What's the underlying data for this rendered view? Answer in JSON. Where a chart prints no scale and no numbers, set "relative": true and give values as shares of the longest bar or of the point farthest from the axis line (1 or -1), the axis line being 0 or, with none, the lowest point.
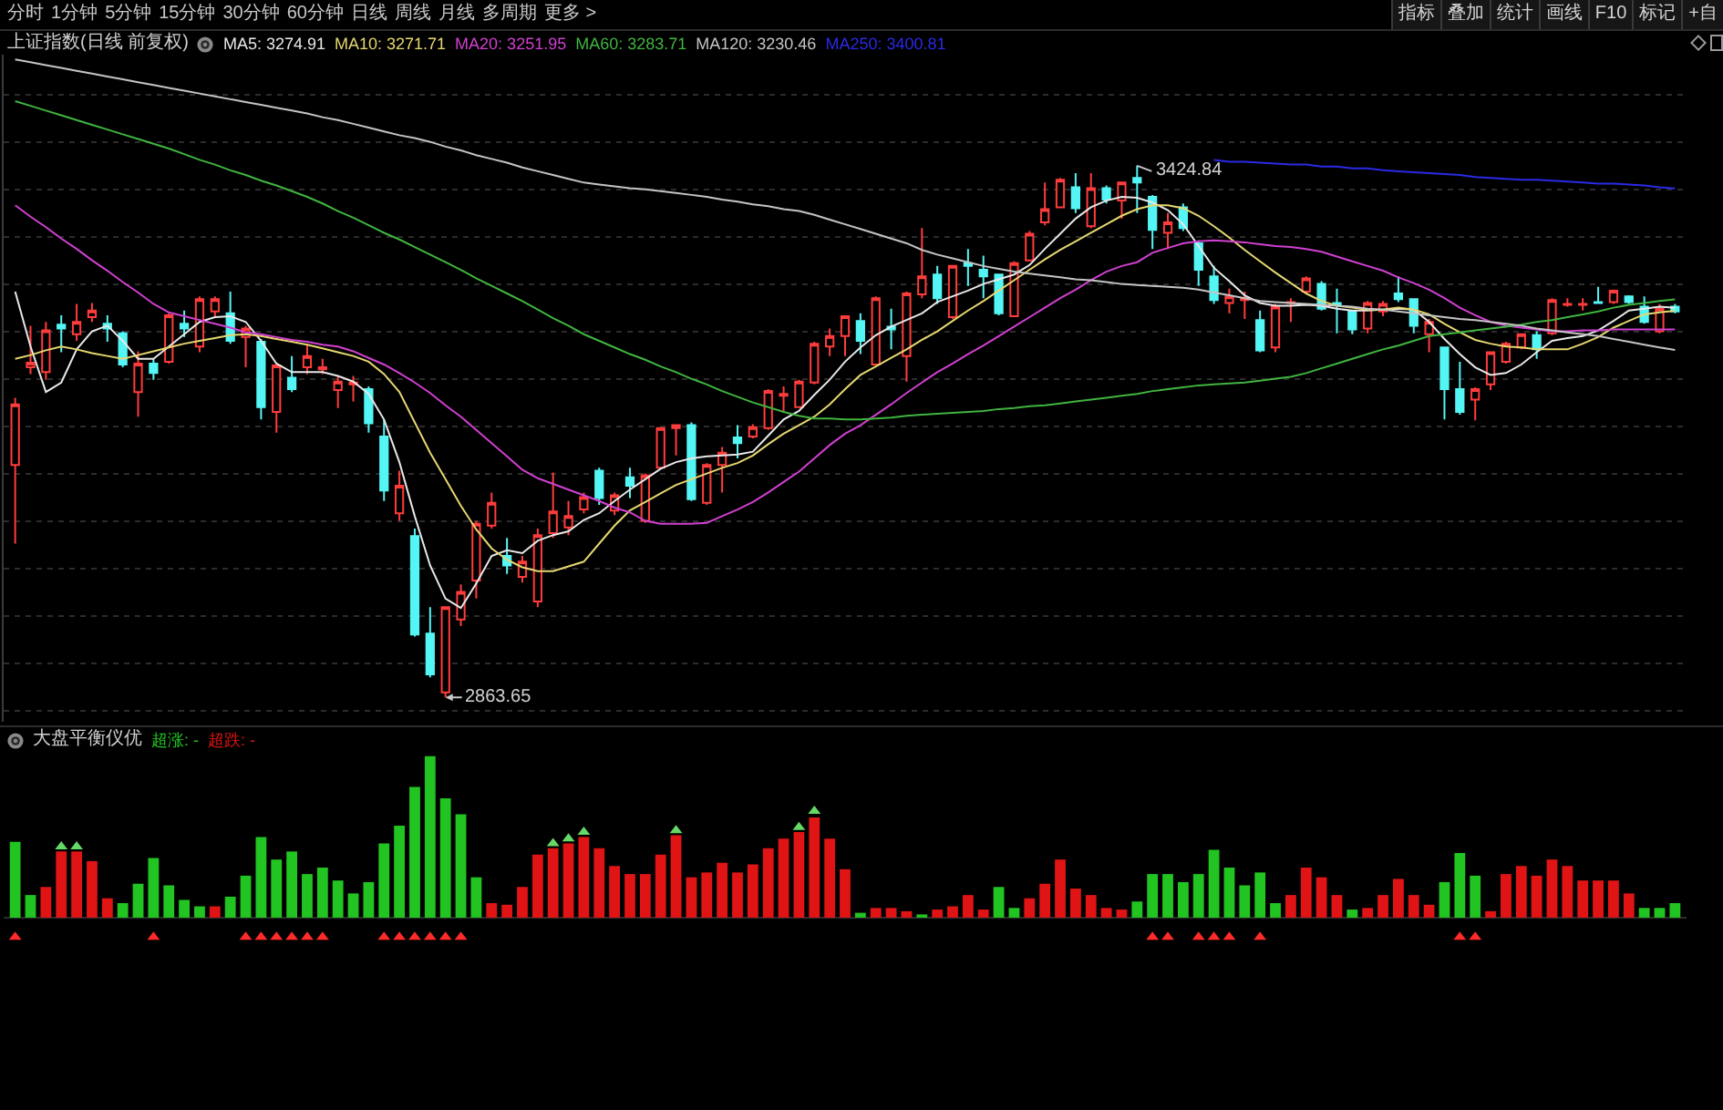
{
  "chart_data": [
    {
      "type": "other",
      "annotations": [
        "分时",
        "1分钟",
        "5分钟",
        "15分钟",
        "30分钟",
        "60分钟",
        "日线",
        "周线",
        "月线",
        "多周期",
        "更多 >"
      ]
    },
    {
      "type": "other",
      "annotations": [
        "指标",
        "叠加",
        "统计",
        "画线",
        "F10",
        "标记",
        "+自"
      ]
    },
    {
      "type": "candlestick",
      "title": "上证指数(日线 前复权)",
      "categories": [
        null,
        null,
        null,
        null,
        null,
        null,
        null,
        null,
        null,
        null,
        null,
        null,
        null,
        null,
        null,
        null,
        null,
        null,
        null,
        null,
        null,
        null,
        null,
        null,
        null,
        null,
        null,
        null,
        null,
        null,
        null,
        null,
        null,
        null,
        null,
        null,
        null,
        null,
        null,
        null,
        null,
        null,
        null,
        null,
        null,
        null,
        null,
        null,
        null,
        null,
        null,
        null,
        null,
        null,
        null,
        null,
        null,
        null,
        null,
        null,
        null,
        null,
        null,
        null,
        null,
        null,
        null,
        null,
        null,
        null,
        null,
        null,
        null,
        null,
        null,
        null,
        null,
        null,
        null,
        null,
        null,
        null,
        null,
        null,
        null,
        null,
        null,
        null,
        null,
        null,
        null,
        null,
        null,
        null,
        null,
        null,
        null,
        null,
        null,
        null,
        null,
        null,
        null,
        null,
        null,
        null,
        null,
        null,
        null
      ],
      "ohlc": [
        [
          3109,
          3180,
          3026,
          3173
        ],
        [
          3212,
          3256,
          3205,
          3217
        ],
        [
          3207,
          3260,
          3199,
          3251
        ],
        [
          3257,
          3267,
          3228,
          3253
        ],
        [
          3247,
          3279,
          3240,
          3260
        ],
        [
          3265,
          3280,
          3260,
          3272
        ],
        [
          3258,
          3267,
          3239,
          3253
        ],
        [
          3248,
          3250,
          3212,
          3215
        ],
        [
          3186,
          3229,
          3160,
          3216
        ],
        [
          3216,
          3221,
          3199,
          3206
        ],
        [
          3218,
          3269,
          3216,
          3267
        ],
        [
          3258,
          3272,
          3244,
          3253
        ],
        [
          3234,
          3287,
          3228,
          3284
        ],
        [
          3271,
          3287,
          3266,
          3284
        ],
        [
          3269,
          3292,
          3237,
          3240
        ],
        [
          3244,
          3256,
          3212,
          3253
        ],
        [
          3239,
          3242,
          3157,
          3170
        ],
        [
          3165,
          3215,
          3143,
          3214
        ],
        [
          3201,
          3224,
          3186,
          3189
        ],
        [
          3212,
          3237,
          3205,
          3224
        ],
        [
          3210,
          3221,
          3205,
          3212
        ],
        [
          3188,
          3203,
          3169,
          3197
        ],
        [
          3194,
          3203,
          3176,
          3196
        ],
        [
          3189,
          3192,
          3143,
          3153
        ],
        [
          3139,
          3157,
          3071,
          3082
        ],
        [
          3058,
          3103,
          3050,
          3087
        ],
        [
          3034,
          3042,
          2928,
          2930
        ],
        [
          2931,
          2959,
          2885,
          2888
        ],
        [
          2869,
          2960,
          2863.65,
          2959
        ],
        [
          2946,
          2983,
          2939,
          2975
        ],
        [
          2987,
          3050,
          2968,
          3047
        ],
        [
          3045,
          3080,
          3042,
          3069
        ],
        [
          3013,
          3032,
          2994,
          3003
        ],
        [
          2991,
          3013,
          2985,
          3007
        ],
        [
          2965,
          3042,
          2959,
          3035
        ],
        [
          3037,
          3101,
          3032,
          3060
        ],
        [
          3043,
          3071,
          3035,
          3055
        ],
        [
          3062,
          3080,
          3058,
          3075
        ],
        [
          3103,
          3106,
          3067,
          3074
        ],
        [
          3061,
          3080,
          3056,
          3077
        ],
        [
          3096,
          3106,
          3074,
          3087
        ],
        [
          3050,
          3100,
          3048,
          3098
        ],
        [
          3106,
          3149,
          3105,
          3148
        ],
        [
          3148,
          3152,
          3119,
          3151
        ],
        [
          3151,
          3154,
          3071,
          3073
        ],
        [
          3069,
          3111,
          3067,
          3109
        ],
        [
          3109,
          3128,
          3080,
          3122
        ],
        [
          3138,
          3151,
          3116,
          3132
        ],
        [
          3139,
          3152,
          3137,
          3149
        ],
        [
          3148,
          3189,
          3146,
          3187
        ],
        [
          3182,
          3192,
          3164,
          3184
        ],
        [
          3170,
          3199,
          3169,
          3197
        ],
        [
          3196,
          3239,
          3194,
          3237
        ],
        [
          3234,
          3253,
          3224,
          3245
        ],
        [
          3245,
          3267,
          3224,
          3266
        ],
        [
          3261,
          3269,
          3226,
          3240
        ],
        [
          3215,
          3287,
          3214,
          3285
        ],
        [
          3255,
          3274,
          3231,
          3252
        ],
        [
          3224,
          3292,
          3197,
          3290
        ],
        [
          3289,
          3359,
          3285,
          3308
        ],
        [
          3310,
          3319,
          3279,
          3285
        ],
        [
          3265,
          3320,
          3263,
          3319
        ],
        [
          3322,
          3337,
          3298,
          3319
        ],
        [
          3315,
          3330,
          3285,
          3308
        ],
        [
          3310,
          3311,
          3267,
          3269
        ],
        [
          3266,
          3324,
          3265,
          3322
        ],
        [
          3325,
          3356,
          3324,
          3353
        ],
        [
          3365,
          3407,
          3362,
          3379
        ],
        [
          3381,
          3412,
          3380,
          3410
        ],
        [
          3402,
          3417,
          3375,
          3380
        ],
        [
          3361,
          3417,
          3359,
          3401
        ],
        [
          3401,
          3404,
          3385,
          3389
        ],
        [
          3388,
          3408,
          3369,
          3407
        ],
        [
          3412,
          3424.84,
          3375,
          3407
        ],
        [
          3392,
          3394,
          3337,
          3357
        ],
        [
          3354,
          3375,
          3337,
          3365
        ],
        [
          3381,
          3385,
          3356,
          3359
        ],
        [
          3343,
          3346,
          3298,
          3315
        ],
        [
          3308,
          3319,
          3279,
          3283
        ],
        [
          3280,
          3295,
          3269,
          3287
        ],
        [
          3283,
          3292,
          3263,
          3285
        ],
        [
          3262,
          3272,
          3228,
          3230
        ],
        [
          3233,
          3279,
          3228,
          3276
        ],
        [
          3280,
          3285,
          3260,
          3281
        ],
        [
          3292,
          3308,
          3290,
          3306
        ],
        [
          3300,
          3303,
          3272,
          3274
        ],
        [
          3280,
          3295,
          3248,
          3278
        ],
        [
          3271,
          3272,
          3247,
          3252
        ],
        [
          3253,
          3282,
          3248,
          3280
        ],
        [
          3271,
          3282,
          3266,
          3279
        ],
        [
          3290,
          3308,
          3281,
          3284
        ],
        [
          3284,
          3285,
          3248,
          3256
        ],
        [
          3247,
          3263,
          3228,
          3260
        ],
        [
          3233,
          3234,
          3157,
          3189
        ],
        [
          3189,
          3218,
          3162,
          3165
        ],
        [
          3178,
          3191,
          3156,
          3189
        ],
        [
          3194,
          3229,
          3188,
          3228
        ],
        [
          3218,
          3239,
          3216,
          3237
        ],
        [
          3233,
          3248,
          3231,
          3247
        ],
        [
          3246,
          3250,
          3221,
          3231
        ],
        [
          3248,
          3285,
          3246,
          3283
        ],
        [
          3278,
          3285,
          3276,
          3279
        ],
        [
          3278,
          3285,
          3272,
          3279
        ],
        [
          3281,
          3297,
          3279,
          3280
        ],
        [
          3281,
          3294,
          3279,
          3293
        ],
        [
          3287,
          3288,
          3279,
          3281
        ],
        [
          3276,
          3287,
          3258,
          3260
        ],
        [
          3250,
          3279,
          3248,
          3274
        ],
        [
          3276,
          3279,
          3269,
          3271
        ]
      ],
      "colors": [
        "#ff3c3c",
        "#ff3c3c",
        "#ff3c3c",
        "#54f5f5",
        "#ff3c3c",
        "#ff3c3c",
        "#54f5f5",
        "#54f5f5",
        "#ff3c3c",
        "#54f5f5",
        "#ff3c3c",
        "#54f5f5",
        "#ff3c3c",
        "#ff3c3c",
        "#54f5f5",
        "#ff3c3c",
        "#54f5f5",
        "#ff3c3c",
        "#54f5f5",
        "#ff3c3c",
        "#ff3c3c",
        "#ff3c3c",
        "#ff3c3c",
        "#54f5f5",
        "#54f5f5",
        "#ff3c3c",
        "#54f5f5",
        "#54f5f5",
        "#ff3c3c",
        "#ff3c3c",
        "#ff3c3c",
        "#ff3c3c",
        "#54f5f5",
        "#ff3c3c",
        "#ff3c3c",
        "#ff3c3c",
        "#ff3c3c",
        "#ff3c3c",
        "#54f5f5",
        "#ff3c3c",
        "#54f5f5",
        "#ff3c3c",
        "#ff3c3c",
        "#ff3c3c",
        "#54f5f5",
        "#ff3c3c",
        "#ff3c3c",
        "#54f5f5",
        "#ff3c3c",
        "#ff3c3c",
        "#ff3c3c",
        "#ff3c3c",
        "#ff3c3c",
        "#ff3c3c",
        "#ff3c3c",
        "#54f5f5",
        "#ff3c3c",
        "#54f5f5",
        "#ff3c3c",
        "#ff3c3c",
        "#54f5f5",
        "#ff3c3c",
        "#54f5f5",
        "#54f5f5",
        "#54f5f5",
        "#ff3c3c",
        "#ff3c3c",
        "#ff3c3c",
        "#ff3c3c",
        "#54f5f5",
        "#ff3c3c",
        "#54f5f5",
        "#ff3c3c",
        "#54f5f5",
        "#54f5f5",
        "#ff3c3c",
        "#54f5f5",
        "#54f5f5",
        "#54f5f5",
        "#ff3c3c",
        "#ff3c3c",
        "#54f5f5",
        "#ff3c3c",
        "#ff3c3c",
        "#ff3c3c",
        "#54f5f5",
        "#54f5f5",
        "#54f5f5",
        "#ff3c3c",
        "#ff3c3c",
        "#54f5f5",
        "#54f5f5",
        "#ff3c3c",
        "#54f5f5",
        "#54f5f5",
        "#ff3c3c",
        "#ff3c3c",
        "#ff3c3c",
        "#ff3c3c",
        "#54f5f5",
        "#ff3c3c",
        "#ff3c3c",
        "#ff3c3c",
        "#54f5f5",
        "#ff3c3c",
        "#54f5f5",
        "#54f5f5",
        "#ff3c3c",
        "#54f5f5"
      ],
      "series": [
        {
          "name": "MA5: 3274.91",
          "type": "line",
          "color": "#e8e8e8",
          "values": [
            3292,
            3234,
            3186,
            3196,
            3231,
            3250,
            3256,
            3240,
            3221,
            3221,
            3234,
            3247,
            3260,
            3265,
            3266,
            3260,
            3240,
            3216,
            3207,
            3207,
            3207,
            3203,
            3197,
            3184,
            3157,
            3112,
            3055,
            3003,
            2968,
            2958,
            2984,
            3013,
            3019,
            3016,
            3029,
            3035,
            3039,
            3051,
            3058,
            3071,
            3083,
            3094,
            3105,
            3112,
            3116,
            3118,
            3119,
            3120,
            3123,
            3140,
            3157,
            3166,
            3183,
            3199,
            3218,
            3233,
            3246,
            3255,
            3262,
            3269,
            3281,
            3287,
            3293,
            3300,
            3305,
            3310,
            3320,
            3337,
            3353,
            3369,
            3381,
            3388,
            3392,
            3391,
            3386,
            3378,
            3363,
            3340,
            3317,
            3303,
            3288,
            3280,
            3277,
            3277,
            3278,
            3277,
            3274,
            3272,
            3272,
            3273,
            3274,
            3273,
            3260,
            3242,
            3226,
            3212,
            3204,
            3206,
            3215,
            3228,
            3240,
            3243,
            3245,
            3251,
            3261,
            3272,
            3274,
            3276,
            3274.91
          ]
        },
        {
          "name": "MA10: 3271.71",
          "type": "line",
          "color": "#e6d770",
          "values": [
            3221,
            3225,
            3230,
            3234,
            3231,
            3227,
            3224,
            3221,
            3225,
            3229,
            3233,
            3237,
            3240,
            3243,
            3246,
            3247,
            3245,
            3242,
            3239,
            3236,
            3232,
            3228,
            3224,
            3218,
            3205,
            3186,
            3154,
            3122,
            3094,
            3066,
            3041,
            3021,
            3009,
            3001,
            2997,
            2997,
            3002,
            3007,
            3026,
            3045,
            3061,
            3070,
            3079,
            3088,
            3094,
            3100,
            3106,
            3111,
            3119,
            3131,
            3142,
            3151,
            3160,
            3173,
            3189,
            3204,
            3213,
            3222,
            3231,
            3241,
            3250,
            3261,
            3272,
            3282,
            3293,
            3304,
            3315,
            3326,
            3336,
            3345,
            3354,
            3363,
            3372,
            3379,
            3383,
            3383,
            3380,
            3372,
            3361,
            3349,
            3336,
            3324,
            3312,
            3301,
            3290,
            3282,
            3277,
            3275,
            3273,
            3273,
            3275,
            3273,
            3268,
            3258,
            3249,
            3241,
            3237,
            3234,
            3233,
            3231,
            3231,
            3231,
            3237,
            3244,
            3254,
            3261,
            3268,
            3270,
            3271.71
          ]
        },
        {
          "name": "MA20: 3251.95",
          "type": "line",
          "color": "#d040d0",
          "values": [
            3383,
            3371,
            3360,
            3348,
            3337,
            3325,
            3314,
            3302,
            3291,
            3279,
            3270,
            3266,
            3262,
            3258,
            3254,
            3249,
            3247,
            3244,
            3241,
            3239,
            3236,
            3234,
            3229,
            3222,
            3215,
            3206,
            3196,
            3185,
            3172,
            3160,
            3146,
            3132,
            3118,
            3104,
            3095,
            3089,
            3083,
            3077,
            3071,
            3064,
            3059,
            3050,
            3047,
            3047,
            3047,
            3048,
            3055,
            3062,
            3070,
            3080,
            3091,
            3102,
            3116,
            3130,
            3142,
            3151,
            3162,
            3173,
            3185,
            3196,
            3207,
            3216,
            3226,
            3235,
            3245,
            3255,
            3265,
            3275,
            3285,
            3294,
            3304,
            3313,
            3319,
            3323,
            3333,
            3338,
            3343,
            3345,
            3346,
            3345,
            3344,
            3342,
            3340,
            3339,
            3337,
            3334,
            3329,
            3324,
            3319,
            3314,
            3307,
            3301,
            3294,
            3285,
            3275,
            3267,
            3260,
            3256,
            3254,
            3252,
            3250,
            3250,
            3251,
            3251,
            3252,
            3252,
            3252,
            3252,
            3251.95
          ]
        },
        {
          "name": "MA60: 3283.71",
          "type": "line",
          "color": "#40b440",
          "values": [
            3493,
            3488,
            3483,
            3478,
            3473,
            3468,
            3463,
            3458,
            3453,
            3448,
            3443,
            3437,
            3431,
            3426,
            3420,
            3415,
            3409,
            3404,
            3398,
            3392,
            3385,
            3377,
            3370,
            3362,
            3354,
            3347,
            3339,
            3331,
            3323,
            3315,
            3306,
            3298,
            3290,
            3282,
            3273,
            3264,
            3256,
            3247,
            3240,
            3233,
            3226,
            3220,
            3213,
            3207,
            3200,
            3194,
            3187,
            3181,
            3175,
            3170,
            3165,
            3161,
            3158,
            3158,
            3157,
            3157,
            3158,
            3159,
            3161,
            3162,
            3163,
            3164,
            3165,
            3166,
            3168,
            3169,
            3171,
            3172,
            3174,
            3176,
            3178,
            3180,
            3182,
            3184,
            3187,
            3189,
            3191,
            3193,
            3194,
            3195,
            3196,
            3198,
            3200,
            3202,
            3206,
            3211,
            3216,
            3221,
            3226,
            3231,
            3235,
            3240,
            3245,
            3247,
            3249,
            3251,
            3253,
            3255,
            3257,
            3260,
            3262,
            3265,
            3268,
            3271,
            3275,
            3278,
            3280,
            3282,
            3283.71
          ]
        },
        {
          "name": "MA120: 3230.46",
          "type": "line",
          "color": "#c4c4c4",
          "values": [
            3537,
            3534,
            3531,
            3528,
            3525,
            3522,
            3519,
            3516,
            3513,
            3510,
            3507,
            3504,
            3501,
            3498,
            3495,
            3492,
            3489,
            3486,
            3483,
            3480,
            3476,
            3473,
            3469,
            3465,
            3461,
            3457,
            3454,
            3450,
            3445,
            3441,
            3436,
            3432,
            3428,
            3423,
            3419,
            3415,
            3411,
            3407,
            3405,
            3403,
            3401,
            3400,
            3398,
            3396,
            3394,
            3392,
            3389,
            3387,
            3384,
            3382,
            3379,
            3377,
            3373,
            3368,
            3363,
            3358,
            3353,
            3348,
            3343,
            3336,
            3331,
            3327,
            3323,
            3319,
            3316,
            3313,
            3311,
            3309,
            3307,
            3305,
            3304,
            3302,
            3300,
            3299,
            3298,
            3297,
            3296,
            3294,
            3291,
            3288,
            3285,
            3282,
            3281,
            3280,
            3279,
            3278,
            3277,
            3276,
            3274,
            3273,
            3271,
            3269,
            3267,
            3265,
            3263,
            3262,
            3260,
            3258,
            3256,
            3253,
            3251,
            3249,
            3247,
            3245,
            3242,
            3239,
            3236,
            3233,
            3230.46
          ]
        },
        {
          "name": "MA250: 3400.81",
          "type": "line",
          "color": "#2a2ae6",
          "values": [
            null,
            null,
            null,
            null,
            null,
            null,
            null,
            null,
            null,
            null,
            null,
            null,
            null,
            null,
            null,
            null,
            null,
            null,
            null,
            null,
            null,
            null,
            null,
            null,
            null,
            null,
            null,
            null,
            null,
            null,
            null,
            null,
            null,
            null,
            null,
            null,
            null,
            null,
            null,
            null,
            null,
            null,
            null,
            null,
            null,
            null,
            null,
            null,
            null,
            null,
            null,
            null,
            null,
            null,
            null,
            null,
            null,
            null,
            null,
            null,
            null,
            null,
            null,
            null,
            null,
            null,
            null,
            null,
            null,
            null,
            null,
            null,
            null,
            null,
            null,
            null,
            null,
            null,
            3431,
            3429,
            3429,
            3428,
            3427,
            3426,
            3426,
            3424,
            3424,
            3422,
            3422,
            3420,
            3419,
            3418,
            3417,
            3416,
            3415,
            3413,
            3412,
            3411,
            3410,
            3410,
            3409,
            3408,
            3407,
            3406,
            3406,
            3405,
            3404,
            3402,
            3400.81
          ]
        }
      ],
      "annotations": [
        "3424.84",
        "2863.65"
      ],
      "ylim": [
        2838,
        3542
      ],
      "yticks": [
        {
          "value": 2850,
          "label": null
        },
        {
          "value": 2900,
          "label": null
        },
        {
          "value": 2950,
          "label": null
        },
        {
          "value": 3000,
          "label": null
        },
        {
          "value": 3050,
          "label": null
        },
        {
          "value": 3100,
          "label": null
        },
        {
          "value": 3150,
          "label": null
        },
        {
          "value": 3200,
          "label": null
        },
        {
          "value": 3250,
          "label": null
        },
        {
          "value": 3300,
          "label": null
        },
        {
          "value": 3350,
          "label": null
        },
        {
          "value": 3400,
          "label": null
        },
        {
          "value": 3450,
          "label": null
        },
        {
          "value": 3500,
          "label": null
        }
      ],
      "grid": "y",
      "legend": "top left"
    },
    {
      "type": "bar",
      "title": "大盘平衡仪优",
      "relative": true,
      "marker": "triangle",
      "legend": "top left",
      "categories": [
        null,
        null,
        null,
        null,
        null,
        null,
        null,
        null,
        null,
        null,
        null,
        null,
        null,
        null,
        null,
        null,
        null,
        null,
        null,
        null,
        null,
        null,
        null,
        null,
        null,
        null,
        null,
        null,
        null,
        null,
        null,
        null,
        null,
        null,
        null,
        null,
        null,
        null,
        null,
        null,
        null,
        null,
        null,
        null,
        null,
        null,
        null,
        null,
        null,
        null,
        null,
        null,
        null,
        null,
        null,
        null,
        null,
        null,
        null,
        null,
        null,
        null,
        null,
        null,
        null,
        null,
        null,
        null,
        null,
        null,
        null,
        null,
        null,
        null,
        null,
        null,
        null,
        null,
        null,
        null,
        null,
        null,
        null,
        null,
        null,
        null,
        null,
        null,
        null,
        null,
        null,
        null,
        null,
        null,
        null,
        null,
        null,
        null,
        null,
        null,
        null,
        null,
        null,
        null,
        null,
        null,
        null,
        null,
        null
      ],
      "series": [
        {
          "name": "超涨: -",
          "color": "#22c422",
          "values": [
            0.47,
            0.14,
            null,
            null,
            null,
            null,
            null,
            0.09,
            0.21,
            0.37,
            0.2,
            0.11,
            0.07,
            null,
            0.13,
            0.26,
            0.5,
            0.36,
            0.41,
            0.27,
            0.31,
            0.23,
            0.15,
            0.22,
            0.46,
            0.57,
            0.81,
            1,
            0.74,
            0.64,
            0.25,
            null,
            null,
            null,
            null,
            null,
            null,
            null,
            null,
            null,
            null,
            null,
            null,
            null,
            null,
            null,
            null,
            null,
            null,
            null,
            null,
            null,
            null,
            null,
            null,
            0.03,
            null,
            null,
            null,
            0.02,
            null,
            null,
            null,
            null,
            0.19,
            0.06,
            null,
            null,
            null,
            null,
            null,
            null,
            null,
            0.1,
            0.27,
            0.27,
            0.22,
            0.27,
            0.42,
            0.31,
            0.2,
            0.28,
            0.09,
            null,
            null,
            null,
            null,
            0.05,
            null,
            null,
            null,
            null,
            null,
            0.22,
            0.4,
            0.26,
            null,
            null,
            null,
            null,
            null,
            null,
            null,
            null,
            null,
            null,
            0.06,
            0.06,
            0.09
          ]
        },
        {
          "name": "超跌: -",
          "color": "#e01414",
          "values": [
            null,
            null,
            0.19,
            0.41,
            0.41,
            0.35,
            0.12,
            null,
            null,
            null,
            null,
            null,
            null,
            0.07,
            null,
            null,
            null,
            null,
            null,
            null,
            null,
            null,
            null,
            null,
            null,
            null,
            null,
            null,
            null,
            null,
            null,
            0.09,
            0.08,
            0.19,
            0.39,
            0.43,
            0.46,
            0.5,
            0.43,
            0.32,
            0.27,
            0.27,
            0.39,
            0.51,
            0.25,
            0.28,
            0.34,
            0.28,
            0.33,
            0.43,
            0.49,
            0.53,
            0.62,
            0.49,
            0.3,
            null,
            0.06,
            0.06,
            0.04,
            null,
            0.05,
            0.07,
            0.14,
            0.05,
            null,
            null,
            0.12,
            0.21,
            0.36,
            0.18,
            0.14,
            0.06,
            0.05,
            null,
            null,
            null,
            null,
            null,
            null,
            null,
            null,
            null,
            null,
            0.14,
            0.31,
            0.25,
            0.14,
            null,
            0.06,
            0.14,
            0.24,
            0.14,
            0.08,
            null,
            null,
            null,
            0.04,
            0.27,
            0.32,
            0.26,
            0.36,
            0.32,
            0.23,
            0.23,
            0.23,
            0.15,
            null,
            null,
            null
          ]
        },
        {
          "type": "scatter",
          "color": "#ff2a2a",
          "values": [
            -0.12,
            null,
            null,
            null,
            null,
            null,
            null,
            null,
            null,
            -0.12,
            null,
            null,
            null,
            null,
            null,
            -0.12,
            -0.12,
            -0.12,
            -0.12,
            -0.12,
            -0.12,
            null,
            null,
            null,
            -0.12,
            -0.12,
            -0.12,
            -0.12,
            -0.12,
            -0.12,
            null,
            null,
            null,
            null,
            null,
            null,
            null,
            null,
            null,
            null,
            null,
            null,
            null,
            null,
            null,
            null,
            null,
            null,
            null,
            null,
            null,
            null,
            null,
            null,
            null,
            null,
            null,
            null,
            null,
            null,
            null,
            null,
            null,
            null,
            null,
            null,
            null,
            null,
            null,
            null,
            null,
            null,
            null,
            null,
            -0.12,
            -0.12,
            null,
            -0.12,
            -0.12,
            -0.12,
            null,
            -0.12,
            null,
            null,
            null,
            null,
            null,
            null,
            null,
            null,
            null,
            null,
            null,
            null,
            -0.12,
            -0.12,
            null,
            null,
            null,
            null,
            null,
            null,
            null,
            null,
            null,
            null,
            null,
            null,
            null
          ]
        },
        {
          "type": "scatter",
          "color": "#66d866",
          "values": [
            null,
            null,
            null,
            0.44,
            0.44,
            null,
            null,
            null,
            null,
            null,
            null,
            null,
            null,
            null,
            null,
            null,
            null,
            null,
            null,
            null,
            null,
            null,
            null,
            null,
            null,
            null,
            null,
            null,
            null,
            null,
            null,
            null,
            null,
            null,
            null,
            0.46,
            0.49,
            0.53,
            null,
            null,
            null,
            null,
            null,
            0.54,
            null,
            null,
            null,
            null,
            null,
            null,
            null,
            0.56,
            0.66,
            null,
            null,
            null,
            null,
            null,
            null,
            null,
            null,
            null,
            null,
            null,
            null,
            null,
            null,
            null,
            null,
            null,
            null,
            null,
            null,
            null,
            null,
            null,
            null,
            null,
            null,
            null,
            null,
            null,
            null,
            null,
            null,
            null,
            null,
            null,
            null,
            null,
            null,
            null,
            null,
            null,
            null,
            null,
            null,
            null,
            null,
            null,
            null,
            null,
            null,
            null,
            null,
            null,
            null,
            null,
            null
          ]
        }
      ]
    }
  ]
}
